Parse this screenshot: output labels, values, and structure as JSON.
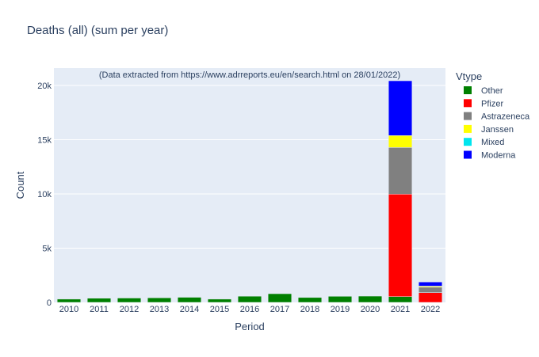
{
  "chart_data": {
    "type": "bar",
    "barmode": "stack",
    "title": "Deaths (all) (sum per year)",
    "xlabel": "Period",
    "ylabel": "Count",
    "annotation": "(Data extracted from https://www.adrreports.eu/en/search.html on 28/01/2022)",
    "legend_title": "Vtype",
    "legend_position": "right",
    "grid": true,
    "ylim": [
      0,
      21600
    ],
    "yticks": [
      0,
      5000,
      10000,
      15000,
      20000
    ],
    "ytick_labels": [
      "0",
      "5k",
      "10k",
      "15k",
      "20k"
    ],
    "categories": [
      "2010",
      "2011",
      "2012",
      "2013",
      "2014",
      "2015",
      "2016",
      "2017",
      "2018",
      "2019",
      "2020",
      "2021",
      "2022"
    ],
    "series": [
      {
        "name": "Other",
        "color": "#008000",
        "values": [
          300,
          380,
          400,
          420,
          470,
          300,
          570,
          800,
          450,
          560,
          580,
          530,
          0
        ]
      },
      {
        "name": "Pfizer",
        "color": "#ff0000",
        "values": [
          0,
          0,
          0,
          0,
          0,
          0,
          0,
          0,
          0,
          0,
          0,
          9450,
          900
        ]
      },
      {
        "name": "Astrazeneca",
        "color": "#808080",
        "values": [
          0,
          0,
          0,
          0,
          0,
          0,
          0,
          0,
          0,
          0,
          0,
          4300,
          500
        ]
      },
      {
        "name": "Janssen",
        "color": "#ffff00",
        "values": [
          0,
          0,
          0,
          0,
          0,
          0,
          0,
          0,
          0,
          0,
          0,
          1100,
          100
        ]
      },
      {
        "name": "Mixed",
        "color": "#00e5ee",
        "values": [
          0,
          0,
          0,
          0,
          0,
          0,
          0,
          0,
          0,
          0,
          0,
          0,
          0
        ]
      },
      {
        "name": "Moderna",
        "color": "#0000ff",
        "values": [
          0,
          0,
          0,
          0,
          0,
          0,
          0,
          0,
          0,
          0,
          0,
          5050,
          380
        ]
      }
    ]
  }
}
